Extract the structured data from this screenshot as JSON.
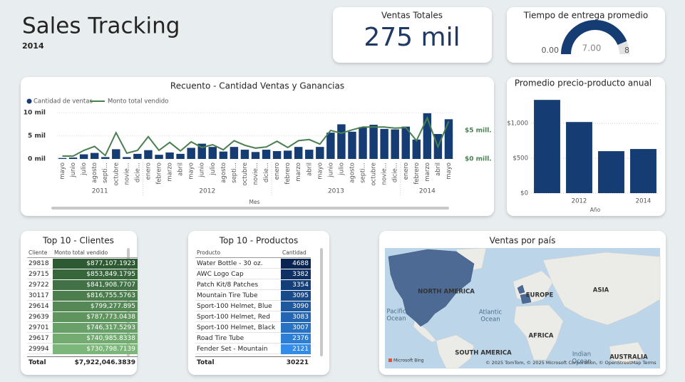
{
  "header": {
    "title": "Sales Tracking",
    "subtitle": "2014"
  },
  "kpi": {
    "title": "Ventas Totales",
    "value": "275 mil"
  },
  "chart_data": [
    {
      "type": "combo",
      "title": "Recuento - Cantidad Ventas y Ganancias",
      "xlabel": "Mes",
      "categories": [
        "mayo",
        "junio",
        "julio",
        "agosto",
        "septi...",
        "octubre",
        "novie...",
        "dicie...",
        "enero",
        "febrero",
        "marzo",
        "abril",
        "mayo",
        "junio",
        "julio",
        "agosto",
        "septi...",
        "octubre",
        "novie...",
        "dicie...",
        "enero",
        "febrero",
        "marzo",
        "abril",
        "mayo",
        "junio",
        "julio",
        "agosto",
        "septi...",
        "octubre",
        "novie...",
        "dicie...",
        "enero",
        "febrero",
        "marzo",
        "abril",
        "mayo"
      ],
      "years": [
        "2011",
        "2012",
        "2013",
        "2014"
      ],
      "series": [
        {
          "name": "Cantidad de ventas",
          "type": "bar",
          "color": "#163d73",
          "values": [
            0.2,
            0.3,
            1.0,
            1.3,
            0.4,
            2.1,
            0.4,
            1.1,
            1.9,
            0.9,
            1.4,
            1.1,
            2.4,
            3.3,
            2.6,
            1.6,
            2.6,
            2.0,
            1.5,
            2.0,
            1.7,
            1.8,
            2.6,
            2.0,
            2.6,
            5.7,
            7.5,
            5.9,
            6.9,
            7.4,
            6.5,
            6.4,
            7.0,
            4.2,
            9.9,
            5.4,
            8.6
          ]
        },
        {
          "name": "Monto total vendido",
          "type": "line",
          "color": "#4a7f50",
          "axis": "y2",
          "values": [
            0.5,
            0.5,
            1.5,
            2.2,
            0.6,
            4.6,
            1.0,
            1.5,
            3.9,
            1.5,
            2.9,
            1.4,
            3.0,
            2.0,
            2.5,
            1.6,
            3.2,
            2.4,
            1.9,
            2.1,
            3.1,
            2.0,
            3.2,
            3.4,
            2.6,
            5.0,
            4.5,
            5.1,
            5.6,
            5.6,
            5.6,
            5.4,
            5.5,
            3.2,
            7.2,
            2.1,
            6.6
          ]
        }
      ],
      "ylim": [
        0,
        10.5
      ],
      "yticks": [
        {
          "value": 0,
          "label": "0 mil"
        },
        {
          "value": 5,
          "label": "5 mil"
        },
        {
          "value": 10,
          "label": "10 mil"
        }
      ],
      "y2lim": [
        0,
        8.5
      ],
      "y2ticks": [
        {
          "value": 0,
          "label": "$0 mill."
        },
        {
          "value": 5,
          "label": "$5 mill."
        }
      ],
      "grid": true,
      "legend": "top-left"
    },
    {
      "type": "bar",
      "title": "Promedio precio-producto anual",
      "xlabel": "Año",
      "categories": [
        null,
        "2012",
        null,
        "2014"
      ],
      "values": [
        1337,
        1020,
        602,
        633
      ],
      "color": "#163d73",
      "ylim": [
        0,
        1390
      ],
      "yticks": [
        {
          "value": 0,
          "label": "$0"
        },
        {
          "value": 500,
          "label": "$500"
        },
        {
          "value": 1000,
          "label": "$1,000"
        }
      ],
      "grid": true
    },
    {
      "type": "gauge",
      "title": "Tiempo de entrega promedio",
      "min": 0,
      "min_label": "0.00",
      "max": 8,
      "values": [
        7
      ],
      "value_labels": [
        "7.00"
      ],
      "color": "#163d73"
    }
  ],
  "clients": {
    "title": "Top 10 - Clientes",
    "columns": [
      "Cliente",
      "Monto total vendido"
    ],
    "rows": [
      [
        "29818",
        "$877,107.1923"
      ],
      [
        "29715",
        "$853,849.1795"
      ],
      [
        "29722",
        "$841,908.7707"
      ],
      [
        "30117",
        "$816,755.5763"
      ],
      [
        "29614",
        "$799,277.895"
      ],
      [
        "29639",
        "$787,773.0438"
      ],
      [
        "29701",
        "$746,317.5293"
      ],
      [
        "29617",
        "$740,985.8338"
      ],
      [
        "29994",
        "$730,798.7139"
      ]
    ],
    "total": [
      "Total",
      "$7,922,046.3839"
    ]
  },
  "products": {
    "title": "Top 10 - Productos",
    "columns": [
      "Producto",
      "Cantidad"
    ],
    "rows": [
      [
        "Water Bottle - 30 oz.",
        "4688"
      ],
      [
        "AWC Logo Cap",
        "3382"
      ],
      [
        "Patch Kit/8 Patches",
        "3354"
      ],
      [
        "Mountain Tire Tube",
        "3095"
      ],
      [
        "Sport-100 Helmet, Blue",
        "3090"
      ],
      [
        "Sport-100 Helmet, Red",
        "3083"
      ],
      [
        "Sport-100 Helmet, Black",
        "3007"
      ],
      [
        "Road Tire Tube",
        "2376"
      ],
      [
        "Fender Set - Mountain",
        "2121"
      ]
    ],
    "total": [
      "Total",
      "30221"
    ]
  },
  "map": {
    "title": "Ventas por país",
    "continents": [
      "NORTH AMERICA",
      "EUROPE",
      "ASIA",
      "AFRICA",
      "SOUTH AMERICA",
      "AUSTRALIA"
    ],
    "oceans": [
      [
        "Pacific",
        "Ocean"
      ],
      [
        "Atlantic",
        "Ocean"
      ],
      [
        "Indian",
        "Ocean"
      ]
    ],
    "logo": "Microsoft Bing",
    "attribution": "© 2025 TomTom, © 2025 Microsoft Corporation, © OpenStreetMap Terms"
  }
}
